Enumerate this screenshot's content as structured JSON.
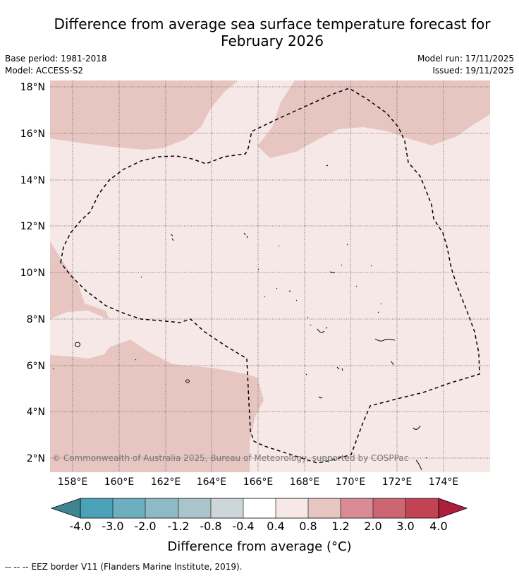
{
  "title": {
    "line1": "Difference from average sea surface temperature forecast for",
    "line2": "February 2026"
  },
  "meta": {
    "base_period": "Base period: 1981-2018",
    "model": "Model: ACCESS-S2",
    "model_run": "Model run: 17/11/2025",
    "issued": "Issued: 19/11/2025"
  },
  "map": {
    "lat_labels": [
      "18°N",
      "16°N",
      "14°N",
      "12°N",
      "10°N",
      "8°N",
      "6°N",
      "4°N",
      "2°N"
    ],
    "lon_labels": [
      "158°E",
      "160°E",
      "162°E",
      "164°E",
      "166°E",
      "168°E",
      "170°E",
      "172°E",
      "174°E"
    ],
    "copyright": "© Commonwealth of Australia 2025, Bureau of Meteorology, supported by COSPPac",
    "colors": {
      "anom_04_08": "#f5e8e6",
      "anom_08_12": "#e7c6c1",
      "grid": "#555555",
      "eez": "#000000"
    }
  },
  "colorbar": {
    "labels": [
      "-4.0",
      "-3.0",
      "-2.0",
      "-1.2",
      "-0.8",
      "-0.4",
      "0.4",
      "0.8",
      "1.2",
      "2.0",
      "3.0",
      "4.0"
    ],
    "colors": [
      "#3f8591",
      "#4ba2b6",
      "#6dafbf",
      "#8ebac6",
      "#a9c5cb",
      "#cdd7d9",
      "#ffffff",
      "#f5e8e6",
      "#e7c6c1",
      "#d98c96",
      "#cc6672",
      "#c04454",
      "#ae1f3c"
    ],
    "title": "Difference from average (°C)"
  },
  "footer": "--  --  -- EEZ border V11 (Flanders Marine Institute, 2019)."
}
